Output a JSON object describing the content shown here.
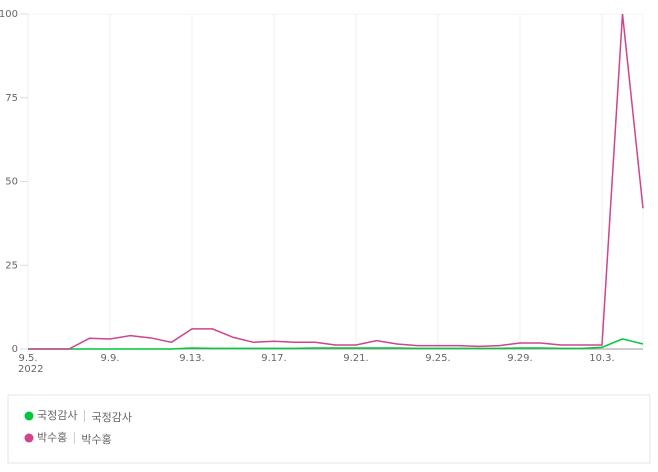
{
  "chart_data": {
    "type": "line",
    "categories": [
      "9.5.",
      null,
      null,
      null,
      "9.9.",
      null,
      null,
      null,
      "9.13.",
      null,
      null,
      null,
      "9.17.",
      null,
      null,
      null,
      "9.21.",
      null,
      null,
      null,
      "9.25.",
      null,
      null,
      null,
      "9.29.",
      null,
      null,
      null,
      "10.3.",
      null,
      null
    ],
    "year_label": "2022",
    "series": [
      {
        "name": "국정감사",
        "keywords": "국정감사",
        "color": "#00c73c",
        "values": [
          0,
          0,
          0,
          0,
          0,
          0,
          0,
          0,
          0.3,
          0.2,
          0.2,
          0.2,
          0.2,
          0.2,
          0.3,
          0.3,
          0.3,
          0.3,
          0.3,
          0.2,
          0.2,
          0.2,
          0.2,
          0.2,
          0.3,
          0.3,
          0.2,
          0.2,
          0.5,
          3,
          1.5
        ]
      },
      {
        "name": "박수홍",
        "keywords": "박수홍",
        "color": "#d1438b",
        "values": [
          0,
          0,
          0,
          3.2,
          3,
          4,
          3.3,
          2,
          6,
          6,
          3.5,
          2,
          2.3,
          2,
          2,
          1.2,
          1.2,
          2.5,
          1.5,
          1,
          1,
          1,
          0.8,
          1,
          1.8,
          1.8,
          1.2,
          1.2,
          1.2,
          100,
          42
        ]
      }
    ],
    "ylim": [
      0,
      100
    ],
    "yticks": [
      0,
      25,
      50,
      75,
      100
    ],
    "grid": true
  }
}
